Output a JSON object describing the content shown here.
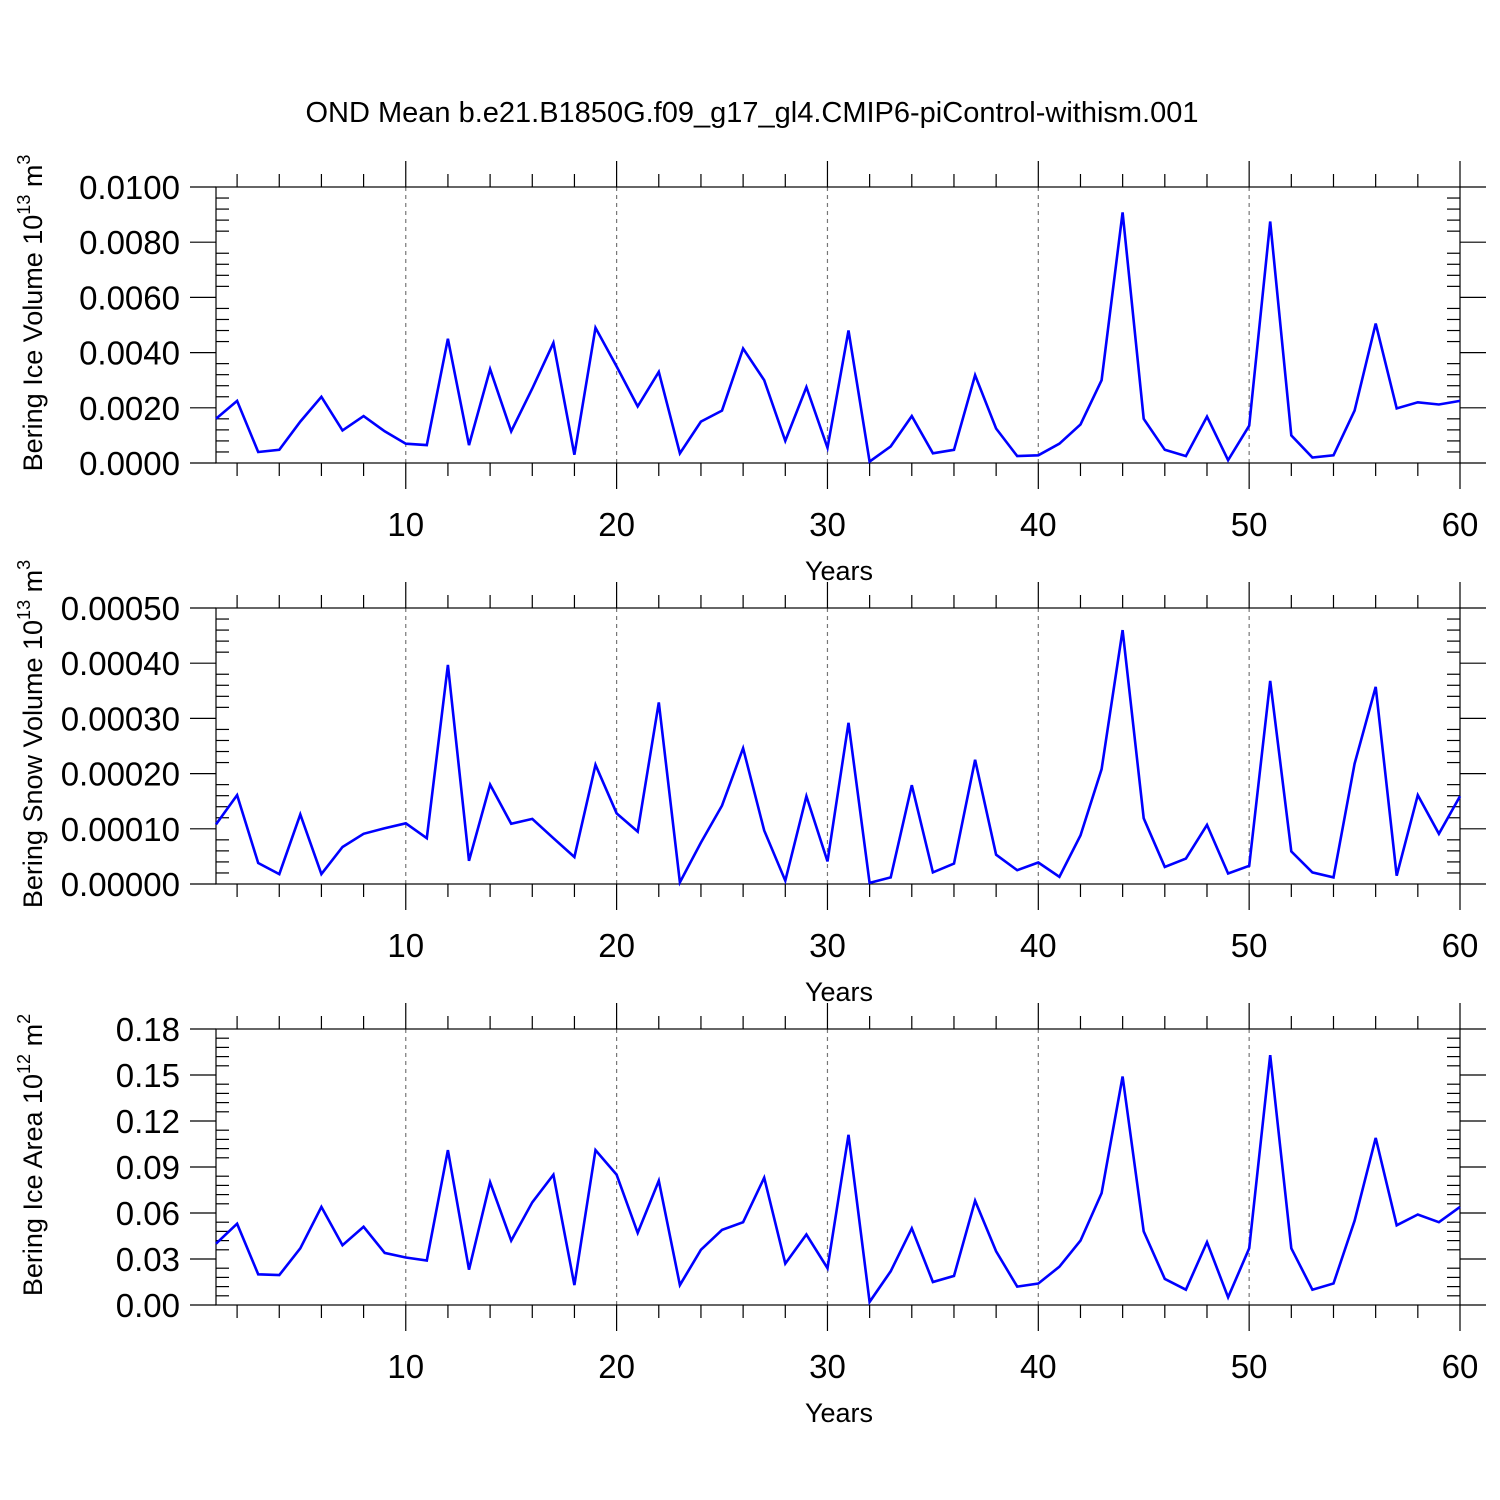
{
  "title": "OND Mean b.e21.B1850G.f09_g17_gl4.CMIP6-piControl-withism.001",
  "line_color": "#0000ff",
  "chart_data": [
    {
      "type": "line",
      "xlabel": "Years",
      "ylabel": {
        "main": "Bering Ice Volume 10",
        "exp": "13",
        "unit": " m",
        "unit_exp": "3"
      },
      "xlim": [
        1,
        60
      ],
      "ylim": [
        0,
        0.01
      ],
      "xticks": [
        10,
        20,
        30,
        40,
        50,
        60
      ],
      "xtick_labels": [
        "10",
        "20",
        "30",
        "40",
        "50",
        "60"
      ],
      "yticks": [
        0,
        0.002,
        0.004,
        0.006,
        0.008,
        0.01
      ],
      "ytick_labels": [
        "0.0000",
        "0.0020",
        "0.0040",
        "0.0060",
        "0.0080",
        "0.0100"
      ],
      "grid": "dashed vertical at x ticks",
      "series": [
        {
          "x": [
            1,
            2,
            3,
            4,
            5,
            6,
            7,
            8,
            9,
            10,
            11,
            12,
            13,
            14,
            15,
            16,
            17,
            18,
            19,
            20,
            21,
            22,
            23,
            24,
            25,
            26,
            27,
            28,
            29,
            30,
            31,
            32,
            33,
            34,
            35,
            36,
            37,
            38,
            39,
            40,
            41,
            42,
            43,
            44,
            45,
            46,
            47,
            48,
            49,
            50,
            51,
            52,
            53,
            54,
            55,
            56,
            57,
            58,
            59,
            60
          ],
          "values": [
            0.0016,
            0.00225,
            0.0004,
            0.00048,
            0.0015,
            0.0024,
            0.00118,
            0.0017,
            0.00115,
            0.0007,
            0.00065,
            0.0045,
            0.00065,
            0.0034,
            0.00115,
            0.0027,
            0.00435,
            0.0003,
            0.0049,
            0.0035,
            0.00205,
            0.0033,
            0.00035,
            0.0015,
            0.0019,
            0.00415,
            0.003,
            0.0008,
            0.00275,
            0.00055,
            0.0048,
            5e-05,
            0.0006,
            0.0017,
            0.00035,
            0.00048,
            0.00318,
            0.00125,
            0.00025,
            0.00028,
            0.0007,
            0.0014,
            0.003,
            0.00908,
            0.0016,
            0.00048,
            0.00025,
            0.00168,
            0.0001,
            0.00135,
            0.00875,
            0.001,
            0.0002,
            0.00028,
            0.0019,
            0.00505,
            0.00198,
            0.0022,
            0.00212,
            0.00225
          ]
        }
      ]
    },
    {
      "type": "line",
      "xlabel": "Years",
      "ylabel": {
        "main": "Bering Snow Volume 10",
        "exp": "13",
        "unit": " m",
        "unit_exp": "3"
      },
      "xlim": [
        1,
        60
      ],
      "ylim": [
        0,
        0.0005
      ],
      "xticks": [
        10,
        20,
        30,
        40,
        50,
        60
      ],
      "xtick_labels": [
        "10",
        "20",
        "30",
        "40",
        "50",
        "60"
      ],
      "yticks": [
        0,
        0.0001,
        0.0002,
        0.0003,
        0.0004,
        0.0005
      ],
      "ytick_labels": [
        "0.00000",
        "0.00010",
        "0.00020",
        "0.00030",
        "0.00040",
        "0.00050"
      ],
      "grid": "dashed vertical at x ticks",
      "series": [
        {
          "x": [
            1,
            2,
            3,
            4,
            5,
            6,
            7,
            8,
            9,
            10,
            11,
            12,
            13,
            14,
            15,
            16,
            17,
            18,
            19,
            20,
            21,
            22,
            23,
            24,
            25,
            26,
            27,
            28,
            29,
            30,
            31,
            32,
            33,
            34,
            35,
            36,
            37,
            38,
            39,
            40,
            41,
            42,
            43,
            44,
            45,
            46,
            47,
            48,
            49,
            50,
            51,
            52,
            53,
            54,
            55,
            56,
            57,
            58,
            59,
            60
          ],
          "values": [
            0.000108,
            0.000161,
            3.8e-05,
            1.8e-05,
            0.000126,
            1.8e-05,
            6.7e-05,
            9.1e-05,
            0.000101,
            0.00011,
            8.3e-05,
            0.000397,
            4.2e-05,
            0.00018,
            0.000109,
            0.000118,
            8.3e-05,
            4.9e-05,
            0.000216,
            0.000128,
            9.5e-05,
            0.000329,
            3e-06,
            7.5e-05,
            0.000142,
            0.000246,
            9.7e-05,
            6e-06,
            0.000159,
            4.1e-05,
            0.000292,
            2e-06,
            1.2e-05,
            0.000179,
            2.1e-05,
            3.7e-05,
            0.000225,
            5.3e-05,
            2.5e-05,
            3.9e-05,
            1.3e-05,
            8.8e-05,
            0.000208,
            0.00046,
            0.000119,
            3.1e-05,
            4.6e-05,
            0.000107,
            1.9e-05,
            3.3e-05,
            0.000368,
            5.9e-05,
            2.1e-05,
            1.2e-05,
            0.000218,
            0.000357,
            1.5e-05,
            0.000161,
            9.1e-05,
            0.000159
          ]
        }
      ]
    },
    {
      "type": "line",
      "xlabel": "Years",
      "ylabel": {
        "main": "Bering Ice Area 10",
        "exp": "12",
        "unit": " m",
        "unit_exp": "2"
      },
      "xlim": [
        1,
        60
      ],
      "ylim": [
        0,
        0.18
      ],
      "xticks": [
        10,
        20,
        30,
        40,
        50,
        60
      ],
      "xtick_labels": [
        "10",
        "20",
        "30",
        "40",
        "50",
        "60"
      ],
      "yticks": [
        0,
        0.03,
        0.06,
        0.09,
        0.12,
        0.15,
        0.18
      ],
      "ytick_labels": [
        "0.00",
        "0.03",
        "0.06",
        "0.09",
        "0.12",
        "0.15",
        "0.18"
      ],
      "grid": "dashed vertical at x ticks",
      "series": [
        {
          "x": [
            1,
            2,
            3,
            4,
            5,
            6,
            7,
            8,
            9,
            10,
            11,
            12,
            13,
            14,
            15,
            16,
            17,
            18,
            19,
            20,
            21,
            22,
            23,
            24,
            25,
            26,
            27,
            28,
            29,
            30,
            31,
            32,
            33,
            34,
            35,
            36,
            37,
            38,
            39,
            40,
            41,
            42,
            43,
            44,
            45,
            46,
            47,
            48,
            49,
            50,
            51,
            52,
            53,
            54,
            55,
            56,
            57,
            58,
            59,
            60
          ],
          "values": [
            0.04,
            0.053,
            0.02,
            0.0195,
            0.037,
            0.064,
            0.039,
            0.051,
            0.034,
            0.031,
            0.029,
            0.101,
            0.023,
            0.08,
            0.042,
            0.067,
            0.085,
            0.013,
            0.101,
            0.085,
            0.047,
            0.081,
            0.013,
            0.036,
            0.049,
            0.054,
            0.083,
            0.027,
            0.046,
            0.024,
            0.111,
            0.002,
            0.022,
            0.05,
            0.015,
            0.019,
            0.068,
            0.035,
            0.012,
            0.014,
            0.025,
            0.042,
            0.073,
            0.149,
            0.048,
            0.017,
            0.01,
            0.041,
            0.005,
            0.037,
            0.163,
            0.037,
            0.01,
            0.014,
            0.055,
            0.109,
            0.052,
            0.059,
            0.054,
            0.064
          ]
        }
      ]
    }
  ]
}
